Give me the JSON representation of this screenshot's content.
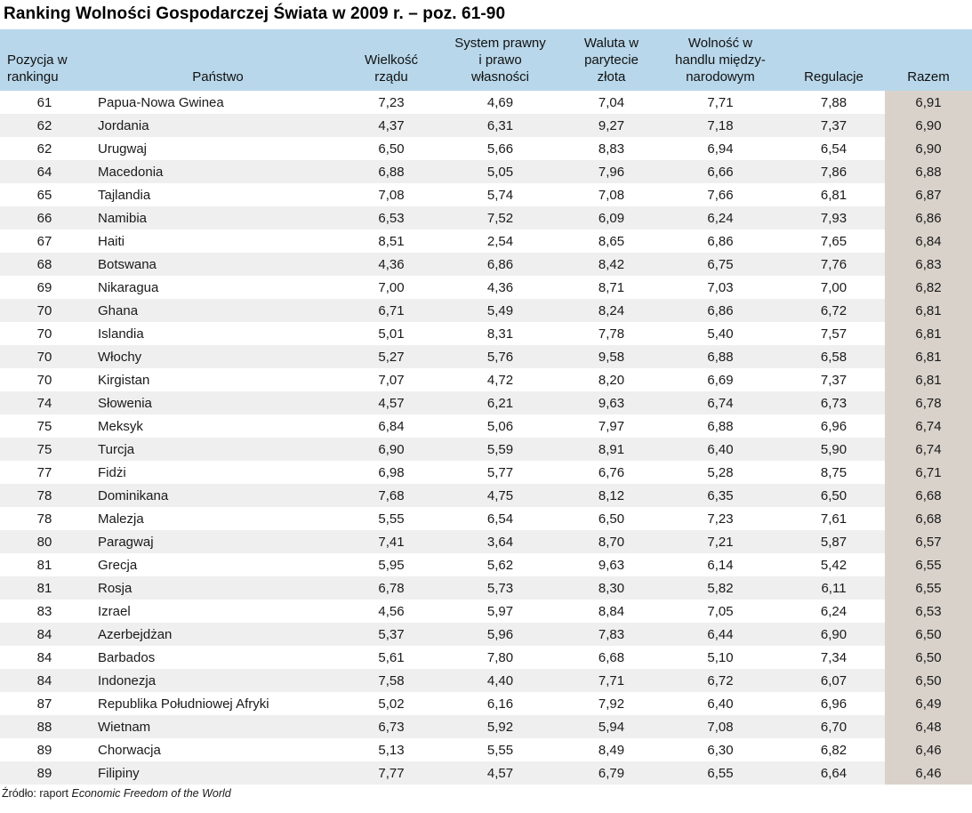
{
  "title": "Ranking Wolności Gospodarczej Świata w 2009 r. – poz. 61-90",
  "colors": {
    "header_bg": "#b8d7ea",
    "alt_row_bg": "#efefef",
    "total_col_bg": "#d9d2cb"
  },
  "table": {
    "columns": [
      {
        "label": "Pozycja w\nrankingu"
      },
      {
        "label": "Państwo"
      },
      {
        "label": "Wielkość\nrządu"
      },
      {
        "label": "System prawny\ni prawo\nwłasności"
      },
      {
        "label": "Waluta w\nparytecie\nzłota"
      },
      {
        "label": "Wolność w\nhandlu między-\nnarodowym"
      },
      {
        "label": "Regulacje"
      },
      {
        "label": "Razem"
      }
    ],
    "rows": [
      [
        "61",
        "Papua-Nowa Gwinea",
        "7,23",
        "4,69",
        "7,04",
        "7,71",
        "7,88",
        "6,91"
      ],
      [
        "62",
        "Jordania",
        "4,37",
        "6,31",
        "9,27",
        "7,18",
        "7,37",
        "6,90"
      ],
      [
        "62",
        "Urugwaj",
        "6,50",
        "5,66",
        "8,83",
        "6,94",
        "6,54",
        "6,90"
      ],
      [
        "64",
        "Macedonia",
        "6,88",
        "5,05",
        "7,96",
        "6,66",
        "7,86",
        "6,88"
      ],
      [
        "65",
        "Tajlandia",
        "7,08",
        "5,74",
        "7,08",
        "7,66",
        "6,81",
        "6,87"
      ],
      [
        "66",
        "Namibia",
        "6,53",
        "7,52",
        "6,09",
        "6,24",
        "7,93",
        "6,86"
      ],
      [
        "67",
        "Haiti",
        "8,51",
        "2,54",
        "8,65",
        "6,86",
        "7,65",
        "6,84"
      ],
      [
        "68",
        "Botswana",
        "4,36",
        "6,86",
        "8,42",
        "6,75",
        "7,76",
        "6,83"
      ],
      [
        "69",
        "Nikaragua",
        "7,00",
        "4,36",
        "8,71",
        "7,03",
        "7,00",
        "6,82"
      ],
      [
        "70",
        "Ghana",
        "6,71",
        "5,49",
        "8,24",
        "6,86",
        "6,72",
        "6,81"
      ],
      [
        "70",
        "Islandia",
        "5,01",
        "8,31",
        "7,78",
        "5,40",
        "7,57",
        "6,81"
      ],
      [
        "70",
        "Włochy",
        "5,27",
        "5,76",
        "9,58",
        "6,88",
        "6,58",
        "6,81"
      ],
      [
        "70",
        "Kirgistan",
        "7,07",
        "4,72",
        "8,20",
        "6,69",
        "7,37",
        "6,81"
      ],
      [
        "74",
        "Słowenia",
        "4,57",
        "6,21",
        "9,63",
        "6,74",
        "6,73",
        "6,78"
      ],
      [
        "75",
        "Meksyk",
        "6,84",
        "5,06",
        "7,97",
        "6,88",
        "6,96",
        "6,74"
      ],
      [
        "75",
        "Turcja",
        "6,90",
        "5,59",
        "8,91",
        "6,40",
        "5,90",
        "6,74"
      ],
      [
        "77",
        "Fidżi",
        "6,98",
        "5,77",
        "6,76",
        "5,28",
        "8,75",
        "6,71"
      ],
      [
        "78",
        "Dominikana",
        "7,68",
        "4,75",
        "8,12",
        "6,35",
        "6,50",
        "6,68"
      ],
      [
        "78",
        "Malezja",
        "5,55",
        "6,54",
        "6,50",
        "7,23",
        "7,61",
        "6,68"
      ],
      [
        "80",
        "Paragwaj",
        "7,41",
        "3,64",
        "8,70",
        "7,21",
        "5,87",
        "6,57"
      ],
      [
        "81",
        "Grecja",
        "5,95",
        "5,62",
        "9,63",
        "6,14",
        "5,42",
        "6,55"
      ],
      [
        "81",
        "Rosja",
        "6,78",
        "5,73",
        "8,30",
        "5,82",
        "6,11",
        "6,55"
      ],
      [
        "83",
        "Izrael",
        "4,56",
        "5,97",
        "8,84",
        "7,05",
        "6,24",
        "6,53"
      ],
      [
        "84",
        "Azerbejdżan",
        "5,37",
        "5,96",
        "7,83",
        "6,44",
        "6,90",
        "6,50"
      ],
      [
        "84",
        "Barbados",
        "5,61",
        "7,80",
        "6,68",
        "5,10",
        "7,34",
        "6,50"
      ],
      [
        "84",
        "Indonezja",
        "7,58",
        "4,40",
        "7,71",
        "6,72",
        "6,07",
        "6,50"
      ],
      [
        "87",
        "Republika Południowej Afryki",
        "5,02",
        "6,16",
        "7,92",
        "6,40",
        "6,96",
        "6,49"
      ],
      [
        "88",
        "Wietnam",
        "6,73",
        "5,92",
        "5,94",
        "7,08",
        "6,70",
        "6,48"
      ],
      [
        "89",
        "Chorwacja",
        "5,13",
        "5,55",
        "8,49",
        "6,30",
        "6,82",
        "6,46"
      ],
      [
        "89",
        "Filipiny",
        "7,77",
        "4,57",
        "6,79",
        "6,55",
        "6,64",
        "6,46"
      ]
    ]
  },
  "footer": {
    "source_prefix": "Źródło: raport ",
    "source_title": "Economic Freedom of the World"
  }
}
